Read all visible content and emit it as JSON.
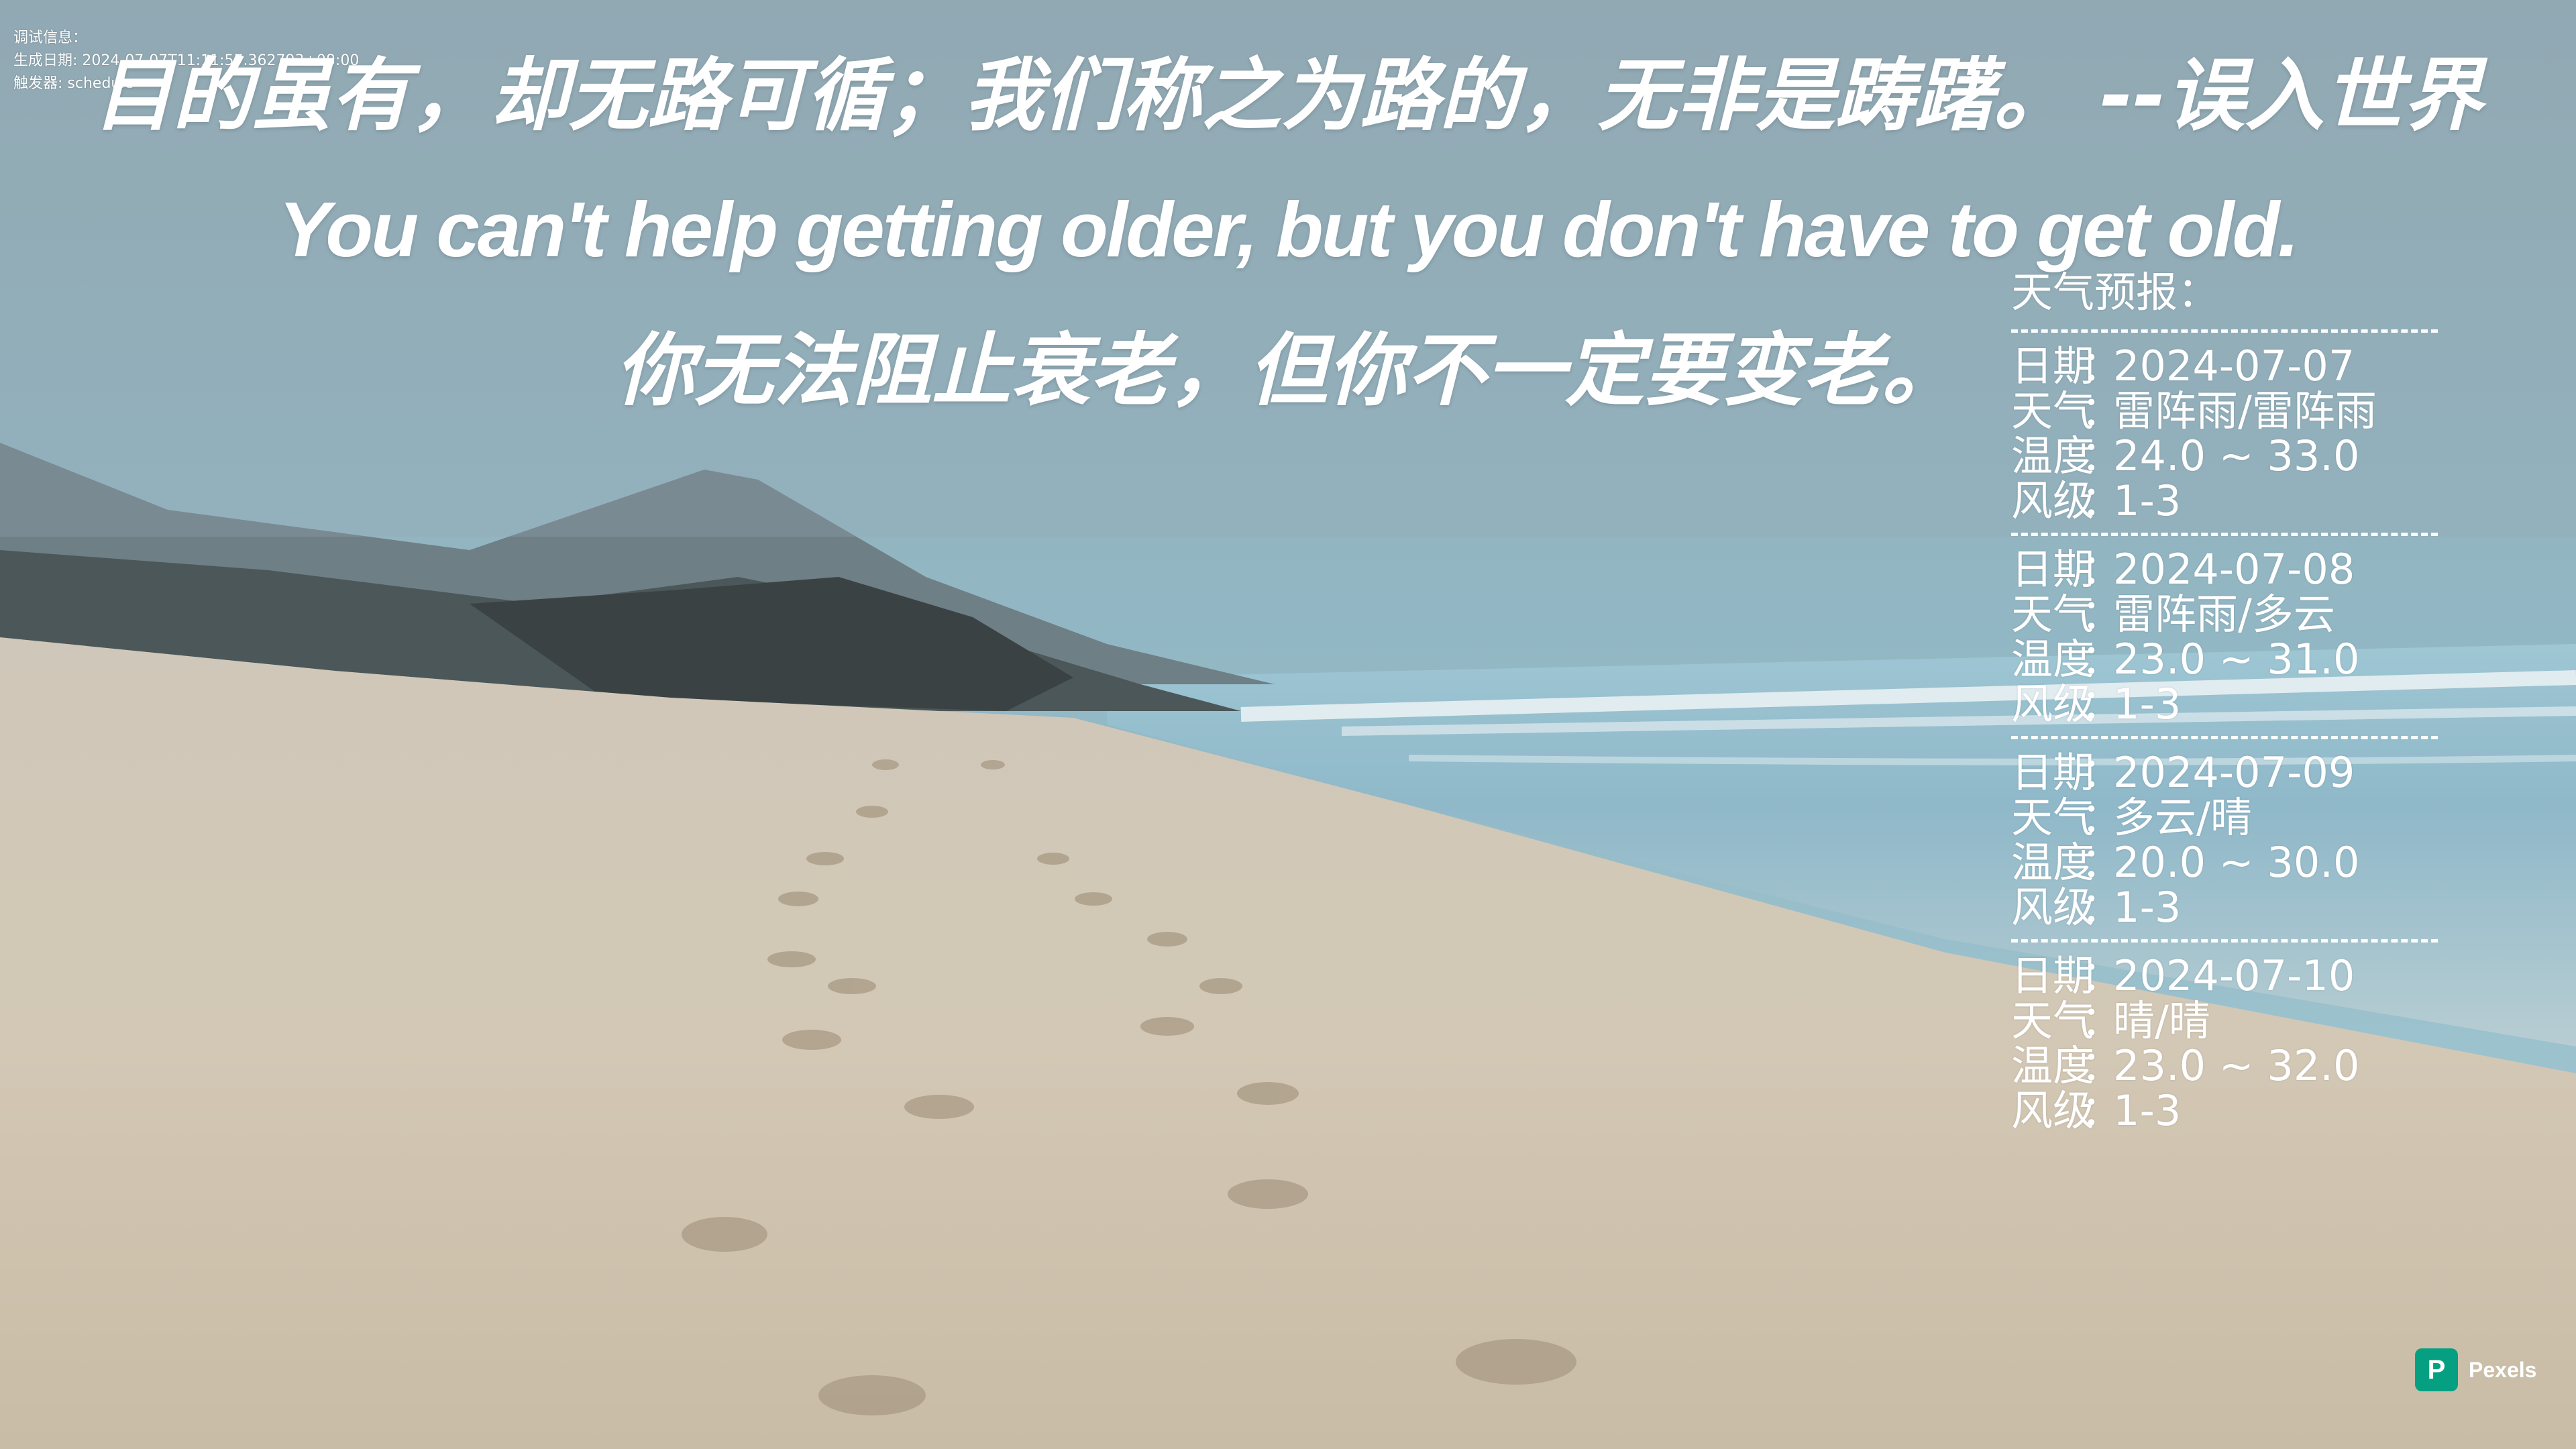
{
  "debug": {
    "line1": "调试信息：",
    "line2": "生成日期: 2024-07-07T11:11:57.362793+08:00",
    "line3": "触发器: schedule"
  },
  "quotes": {
    "chinese": "目的虽有，却无路可循；我们称之为路的，无非是踌躇。   --误入世界",
    "english": "You can't help getting older, but you don't have to get old.",
    "translation": "你无法阻止衰老，但你不一定要变老。"
  },
  "weather": {
    "title": "天气预报：",
    "separator_colon": "：",
    "labels": {
      "date": "日期",
      "weather": "天气",
      "temp": "温度",
      "wind": "风级"
    },
    "days": [
      {
        "date": "2024-07-07",
        "weather": "雷阵雨/雷阵雨",
        "temp": "24.0 ~ 33.0",
        "wind": "1-3"
      },
      {
        "date": "2024-07-08",
        "weather": "雷阵雨/多云",
        "temp": "23.0 ~ 31.0",
        "wind": "1-3"
      },
      {
        "date": "2024-07-09",
        "weather": "多云/晴",
        "temp": "20.0 ~ 30.0",
        "wind": "1-3"
      },
      {
        "date": "2024-07-10",
        "weather": "晴/晴",
        "temp": "23.0 ~ 32.0",
        "wind": "1-3"
      }
    ]
  },
  "watermark": {
    "label": "Pexels",
    "icon": "pexels-logo-icon"
  },
  "colors": {
    "text": "#ffffff",
    "pexels_brand": "#05a081",
    "sky": "#8fbccc",
    "sand": "#d6cdbd",
    "sea": "#7fb0c4"
  }
}
